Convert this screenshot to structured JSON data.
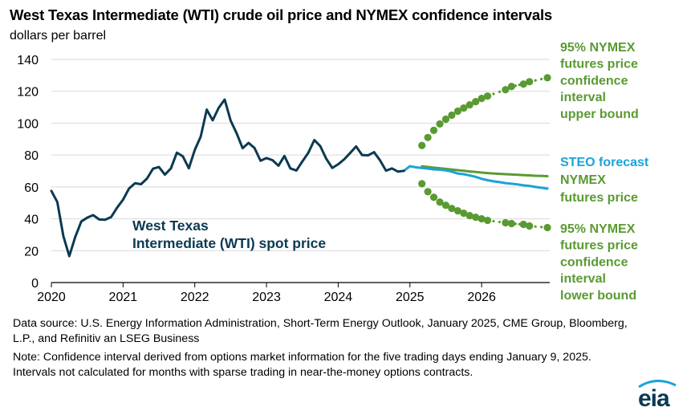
{
  "title": "West Texas Intermediate (WTI) crude oil price and NYMEX confidence intervals",
  "subtitle": "dollars per barrel",
  "source_text": "Data source: U.S. Energy Information Administration, Short-Term Energy Outlook, January 2025, CME Group, Bloomberg, L.P., and Refinitiv an LSEG Business",
  "note_text": "Note: Confidence interval derived from options market information for the five trading days ending January 9, 2025. Intervals not calculated for months with sparse trading in near-the-money options contracts.",
  "logo_text": "eia",
  "colors": {
    "spot": "#0b3a52",
    "steo": "#1aa3d9",
    "nymex": "#5a9a32"
  },
  "chart_data": {
    "type": "line",
    "ylim": [
      0,
      140
    ],
    "y_ticks": [
      0,
      20,
      40,
      60,
      80,
      100,
      120,
      140
    ],
    "xlim": [
      2020.0,
      2026.95
    ],
    "x_ticks": [
      2020,
      2021,
      2022,
      2023,
      2024,
      2025,
      2026
    ],
    "x_tick_labels": [
      "2020",
      "2021",
      "2022",
      "2023",
      "2024",
      "2025",
      "2026"
    ],
    "grid": "horizontal",
    "series": [
      {
        "name": "West Texas Intermediate (WTI) spot price",
        "label_lines": [
          "West Texas",
          "Intermediate (WTI) spot price"
        ],
        "style": "solid",
        "x": [
          2020.0,
          2020.083,
          2020.167,
          2020.25,
          2020.333,
          2020.417,
          2020.5,
          2020.583,
          2020.667,
          2020.75,
          2020.833,
          2020.917,
          2021.0,
          2021.083,
          2021.167,
          2021.25,
          2021.333,
          2021.417,
          2021.5,
          2021.583,
          2021.667,
          2021.75,
          2021.833,
          2021.917,
          2022.0,
          2022.083,
          2022.167,
          2022.25,
          2022.333,
          2022.417,
          2022.5,
          2022.583,
          2022.667,
          2022.75,
          2022.833,
          2022.917,
          2023.0,
          2023.083,
          2023.167,
          2023.25,
          2023.333,
          2023.417,
          2023.5,
          2023.583,
          2023.667,
          2023.75,
          2023.833,
          2023.917,
          2024.0,
          2024.083,
          2024.167,
          2024.25,
          2024.333,
          2024.417,
          2024.5,
          2024.583,
          2024.667,
          2024.75,
          2024.833,
          2024.917
        ],
        "y": [
          57.5,
          50.5,
          29.2,
          16.6,
          28.6,
          38.3,
          40.7,
          42.3,
          39.6,
          39.4,
          41.1,
          47.0,
          52.0,
          59.0,
          62.3,
          61.7,
          65.2,
          71.4,
          72.5,
          67.7,
          71.6,
          81.5,
          79.2,
          71.7,
          83.2,
          91.6,
          108.5,
          101.8,
          109.6,
          114.8,
          101.6,
          93.7,
          84.3,
          87.6,
          84.4,
          76.4,
          78.1,
          76.8,
          73.3,
          79.4,
          71.6,
          70.3,
          76.0,
          81.4,
          89.4,
          85.6,
          77.7,
          71.9,
          74.2,
          77.3,
          81.3,
          85.4,
          80.0,
          79.8,
          81.8,
          76.7,
          70.2,
          71.6,
          69.6,
          70.1
        ]
      },
      {
        "name": "STEO forecast",
        "label_lines": [
          "STEO forecast"
        ],
        "style": "solid",
        "x": [
          2024.917,
          2025.0,
          2025.083,
          2025.167,
          2025.25,
          2025.333,
          2025.417,
          2025.5,
          2025.583,
          2025.667,
          2025.75,
          2025.833,
          2025.917,
          2026.0,
          2026.083,
          2026.167,
          2026.25,
          2026.333,
          2026.417,
          2026.5,
          2026.583,
          2026.667,
          2026.75,
          2026.833,
          2026.917
        ],
        "y": [
          70.1,
          73.0,
          72.3,
          71.9,
          71.5,
          71.0,
          70.8,
          70.4,
          69.6,
          68.4,
          68.0,
          67.2,
          66.3,
          65.1,
          64.2,
          63.5,
          63.0,
          62.4,
          62.0,
          61.6,
          61.0,
          60.6,
          60.0,
          59.5,
          58.9
        ]
      },
      {
        "name": "NYMEX futures price",
        "label_lines": [
          "NYMEX",
          "futures price"
        ],
        "style": "solid",
        "x": [
          2025.167,
          2025.25,
          2025.333,
          2025.417,
          2025.5,
          2025.583,
          2025.667,
          2025.75,
          2025.833,
          2025.917,
          2026.0,
          2026.083,
          2026.167,
          2026.25,
          2026.333,
          2026.417,
          2026.5,
          2026.583,
          2026.667,
          2026.75,
          2026.833,
          2026.917
        ],
        "y": [
          72.9,
          72.5,
          72.1,
          71.7,
          71.3,
          70.9,
          70.5,
          70.1,
          69.7,
          69.4,
          69.0,
          68.7,
          68.4,
          68.2,
          68.0,
          67.8,
          67.6,
          67.4,
          67.2,
          67.0,
          66.9,
          66.7
        ]
      },
      {
        "name": "95% NYMEX futures price confidence interval upper bound",
        "label_lines": [
          "95% NYMEX",
          "futures price",
          "confidence",
          "interval",
          "upper bound"
        ],
        "style": "dots",
        "x": [
          2025.167,
          2025.25,
          2025.333,
          2025.417,
          2025.5,
          2025.583,
          2025.667,
          2025.75,
          2025.833,
          2025.917,
          2026.0,
          2026.083,
          2026.333,
          2026.417,
          2026.583,
          2026.667,
          2026.917
        ],
        "y": [
          86.0,
          91.0,
          95.5,
          99.5,
          102.5,
          105.0,
          107.5,
          109.5,
          111.5,
          113.5,
          115.5,
          117.0,
          121.0,
          123.0,
          124.5,
          126.0,
          128.5
        ]
      },
      {
        "name": "95% NYMEX futures price confidence interval lower bound",
        "label_lines": [
          "95% NYMEX",
          "futures price",
          "confidence",
          "interval",
          "lower bound"
        ],
        "style": "dots",
        "x": [
          2025.167,
          2025.25,
          2025.333,
          2025.417,
          2025.5,
          2025.583,
          2025.667,
          2025.75,
          2025.833,
          2025.917,
          2026.0,
          2026.083,
          2026.333,
          2026.417,
          2026.583,
          2026.667,
          2026.917
        ],
        "y": [
          62.0,
          57.0,
          53.5,
          50.5,
          48.5,
          46.5,
          45.0,
          43.5,
          42.0,
          41.0,
          40.0,
          39.0,
          37.5,
          37.0,
          36.5,
          35.5,
          34.5
        ]
      }
    ]
  }
}
